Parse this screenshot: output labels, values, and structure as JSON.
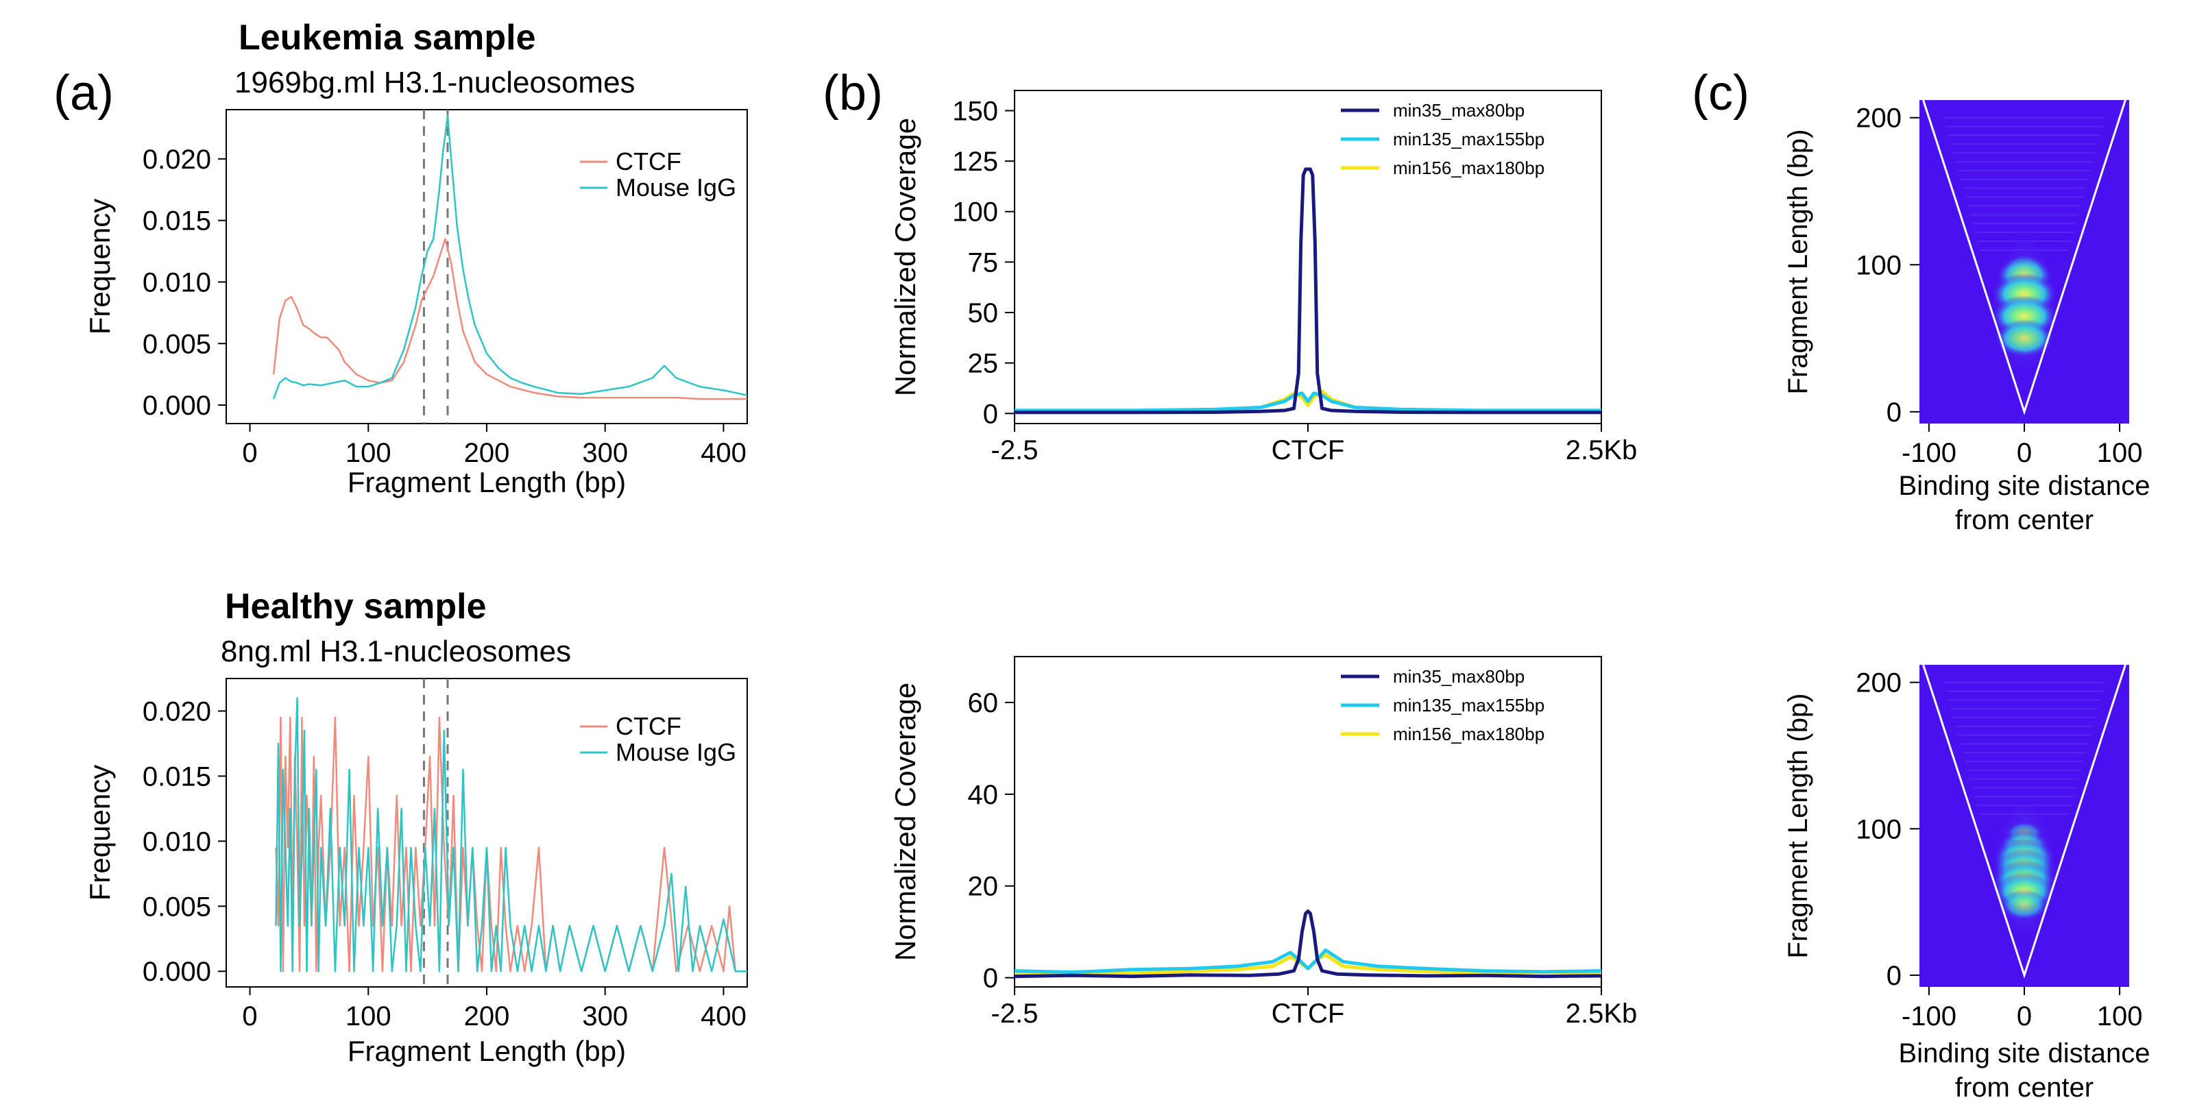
{
  "panels": {
    "a": "(a)",
    "b": "(b)",
    "c": "(c)"
  },
  "chart_data": [
    {
      "id": "a_top",
      "type": "line",
      "title": "Leukemia sample",
      "subtitle": "1969bg.ml H3.1-nucleosomes",
      "xlabel": "Fragment Length (bp)",
      "ylabel": "Frequency",
      "xlim": [
        -20,
        420
      ],
      "ylim": [
        -0.0015,
        0.024
      ],
      "xticks": [
        0,
        100,
        200,
        300,
        400
      ],
      "yticks": [
        "0.000",
        "0.005",
        "0.010",
        "0.015",
        "0.020"
      ],
      "ytick_values": [
        0,
        0.005,
        0.01,
        0.015,
        0.02
      ],
      "vlines": [
        147,
        167
      ],
      "legend": "top-right",
      "grid": false,
      "series": [
        {
          "name": "CTCF",
          "color": "#f08a7c",
          "x": [
            20,
            25,
            30,
            35,
            40,
            45,
            50,
            55,
            60,
            65,
            70,
            75,
            80,
            90,
            100,
            110,
            120,
            130,
            140,
            145,
            150,
            155,
            160,
            165,
            170,
            175,
            180,
            190,
            200,
            220,
            240,
            260,
            280,
            300,
            320,
            340,
            360,
            380,
            400,
            420
          ],
          "values": [
            0.0025,
            0.007,
            0.0085,
            0.0088,
            0.0078,
            0.0065,
            0.0062,
            0.0058,
            0.0055,
            0.0055,
            0.005,
            0.0045,
            0.0035,
            0.0025,
            0.002,
            0.0018,
            0.002,
            0.0035,
            0.0065,
            0.0085,
            0.0095,
            0.0105,
            0.012,
            0.0135,
            0.0115,
            0.0085,
            0.006,
            0.0035,
            0.0025,
            0.0015,
            0.001,
            0.0007,
            0.0006,
            0.0006,
            0.0006,
            0.0006,
            0.0006,
            0.0005,
            0.0005,
            0.0005
          ]
        },
        {
          "name": "Mouse IgG",
          "color": "#2ec4c6",
          "x": [
            20,
            25,
            30,
            35,
            40,
            45,
            50,
            60,
            70,
            80,
            90,
            100,
            110,
            120,
            130,
            140,
            145,
            150,
            155,
            160,
            163,
            167,
            170,
            175,
            180,
            185,
            190,
            200,
            210,
            220,
            230,
            240,
            260,
            280,
            300,
            320,
            340,
            350,
            360,
            380,
            400,
            420
          ],
          "values": [
            0.0005,
            0.0018,
            0.0022,
            0.0019,
            0.0018,
            0.0016,
            0.0017,
            0.0016,
            0.0018,
            0.002,
            0.0015,
            0.0015,
            0.0018,
            0.0022,
            0.0045,
            0.008,
            0.0105,
            0.0125,
            0.0135,
            0.0175,
            0.0205,
            0.0235,
            0.02,
            0.0145,
            0.011,
            0.0085,
            0.0065,
            0.0042,
            0.003,
            0.0022,
            0.0018,
            0.0015,
            0.001,
            0.0009,
            0.0012,
            0.0015,
            0.0022,
            0.0032,
            0.0022,
            0.0015,
            0.0012,
            0.0008
          ]
        }
      ]
    },
    {
      "id": "a_bottom",
      "type": "line",
      "title": "Healthy sample",
      "subtitle": "8ng.ml H3.1-nucleosomes",
      "xlabel": "Fragment Length (bp)",
      "ylabel": "Frequency",
      "xlim": [
        -20,
        420
      ],
      "ylim": [
        -0.0012,
        0.0225
      ],
      "xticks": [
        0,
        100,
        200,
        300,
        400
      ],
      "yticks": [
        "0.000",
        "0.005",
        "0.010",
        "0.015",
        "0.020"
      ],
      "ytick_values": [
        0,
        0.005,
        0.01,
        0.015,
        0.02
      ],
      "vlines": [
        147,
        167
      ],
      "legend": "top-right",
      "grid": false,
      "series": [
        {
          "name": "CTCF",
          "color": "#f08a7c",
          "x": [
            22,
            24,
            26,
            28,
            30,
            32,
            34,
            36,
            38,
            40,
            42,
            44,
            46,
            48,
            50,
            52,
            54,
            56,
            58,
            60,
            64,
            68,
            72,
            76,
            80,
            84,
            88,
            92,
            96,
            100,
            104,
            108,
            112,
            116,
            120,
            124,
            128,
            132,
            136,
            140,
            144,
            148,
            152,
            156,
            160,
            164,
            168,
            172,
            176,
            180,
            184,
            188,
            192,
            196,
            200,
            204,
            208,
            212,
            216,
            220,
            226,
            232,
            238,
            244,
            250,
            256,
            262,
            270,
            280,
            290,
            300,
            310,
            320,
            330,
            340,
            350,
            360,
            370,
            380,
            390,
            400,
            405,
            410
          ],
          "values": [
            0.0095,
            0.0035,
            0.0195,
            0.0,
            0.0165,
            0.0095,
            0.0195,
            0.0035,
            0.0165,
            0.0095,
            0.0,
            0.0195,
            0.0035,
            0.0135,
            0.0095,
            0.0035,
            0.0165,
            0.0,
            0.0095,
            0.0135,
            0.0035,
            0.0095,
            0.0195,
            0.0035,
            0.0095,
            0.0,
            0.0135,
            0.0035,
            0.0095,
            0.0165,
            0.0035,
            0.0095,
            0.0,
            0.0095,
            0.0035,
            0.0135,
            0.0035,
            0.0095,
            0.0,
            0.0095,
            0.0035,
            0.0095,
            0.0165,
            0.0035,
            0.0195,
            0.0095,
            0.0035,
            0.0135,
            0.0,
            0.0095,
            0.0035,
            0.0095,
            0.0035,
            0.0,
            0.0095,
            0.0035,
            0.0,
            0.0095,
            0.0035,
            0.0,
            0.0035,
            0.0,
            0.0035,
            0.0095,
            0.0,
            0.0035,
            0.0,
            0.0035,
            0.0,
            0.0035,
            0.0,
            0.0035,
            0.0,
            0.0035,
            0.0,
            0.0095,
            0.0,
            0.0035,
            0.0,
            0.0035,
            0.0,
            0.005,
            0.0
          ]
        },
        {
          "name": "Mouse IgG",
          "color": "#2ec4c6",
          "x": [
            22,
            24,
            26,
            28,
            30,
            32,
            34,
            36,
            38,
            40,
            42,
            44,
            46,
            48,
            50,
            52,
            54,
            56,
            58,
            60,
            64,
            68,
            72,
            76,
            80,
            84,
            88,
            92,
            96,
            100,
            104,
            108,
            112,
            116,
            120,
            124,
            128,
            132,
            136,
            140,
            144,
            148,
            152,
            156,
            160,
            164,
            168,
            172,
            176,
            180,
            184,
            188,
            192,
            196,
            200,
            204,
            208,
            212,
            216,
            220,
            226,
            232,
            238,
            244,
            250,
            256,
            262,
            270,
            280,
            290,
            300,
            310,
            320,
            330,
            340,
            350,
            356,
            362,
            368,
            374,
            380,
            390,
            400,
            410,
            420
          ],
          "values": [
            0.0035,
            0.0175,
            0.0,
            0.0155,
            0.0095,
            0.0035,
            0.0125,
            0.0,
            0.0155,
            0.021,
            0.0035,
            0.0095,
            0.0185,
            0.0,
            0.0125,
            0.0035,
            0.0095,
            0.0155,
            0.0,
            0.0095,
            0.0035,
            0.0125,
            0.0,
            0.0095,
            0.0035,
            0.0155,
            0.0,
            0.0095,
            0.0035,
            0.0095,
            0.0,
            0.0125,
            0.0035,
            0.0095,
            0.0,
            0.0035,
            0.0125,
            0.0,
            0.0095,
            0.0035,
            0.0,
            0.0095,
            0.0035,
            0.0125,
            0.0,
            0.0185,
            0.0035,
            0.0095,
            0.0,
            0.0155,
            0.0035,
            0.0095,
            0.0,
            0.0035,
            0.0095,
            0.0,
            0.0035,
            0.0,
            0.0095,
            0.0035,
            0.0,
            0.0035,
            0.0,
            0.0035,
            0.0,
            0.0035,
            0.0,
            0.0035,
            0.0,
            0.0035,
            0.0,
            0.0035,
            0.0,
            0.0035,
            0.0,
            0.0035,
            0.0075,
            0.0,
            0.0065,
            0.0,
            0.0035,
            0.0,
            0.004,
            0.0,
            0.0
          ]
        }
      ]
    },
    {
      "id": "b_top",
      "type": "line",
      "xlabel": "",
      "ylabel": "Normalized Coverage",
      "xlim": [
        -2.5,
        2.5
      ],
      "ylim": [
        -5,
        160
      ],
      "xticks": [
        -2.5,
        0,
        2.5
      ],
      "xticklabels": [
        "-2.5",
        "CTCF",
        "2.5Kb"
      ],
      "yticks": [
        0,
        25,
        50,
        75,
        100,
        125,
        150
      ],
      "legend": "top-right",
      "grid": false,
      "series": [
        {
          "name": "min35_max80bp",
          "color": "#1a1a7e",
          "x": [
            -2.5,
            -1.5,
            -0.8,
            -0.4,
            -0.2,
            -0.12,
            -0.08,
            -0.06,
            -0.04,
            -0.02,
            0,
            0.02,
            0.04,
            0.06,
            0.08,
            0.12,
            0.2,
            0.4,
            0.8,
            1.5,
            2.5
          ],
          "values": [
            0.5,
            0.5,
            0.6,
            1.0,
            1.5,
            2.5,
            20,
            85,
            118,
            121,
            121,
            121,
            118,
            85,
            20,
            2.5,
            1.5,
            1.0,
            0.6,
            0.5,
            0.5
          ]
        },
        {
          "name": "min135_max155bp",
          "color": "#22c8ee",
          "x": [
            -2.5,
            -1.5,
            -0.8,
            -0.4,
            -0.2,
            -0.12,
            -0.05,
            0,
            0.05,
            0.12,
            0.2,
            0.4,
            0.8,
            1.5,
            2.5
          ],
          "values": [
            1.5,
            1.5,
            2,
            3,
            6,
            9,
            10,
            6,
            10,
            9,
            6,
            3,
            2,
            1.5,
            1.5
          ]
        },
        {
          "name": "min156_max180bp",
          "color": "#f6e318",
          "x": [
            -2.5,
            -1.5,
            -0.8,
            -0.4,
            -0.2,
            -0.12,
            -0.05,
            0,
            0.05,
            0.12,
            0.2,
            0.4,
            0.8,
            1.5,
            2.5
          ],
          "values": [
            1.2,
            1.2,
            1.8,
            3,
            7,
            10,
            8,
            4,
            8,
            11,
            7,
            3,
            1.8,
            1.2,
            1.2
          ]
        }
      ]
    },
    {
      "id": "b_bottom",
      "type": "line",
      "xlabel": "",
      "ylabel": "Normalized Coverage",
      "xlim": [
        -2.5,
        2.5
      ],
      "ylim": [
        -2,
        70
      ],
      "xticks": [
        -2.5,
        0,
        2.5
      ],
      "xticklabels": [
        "-2.5",
        "CTCF",
        "2.5Kb"
      ],
      "yticks": [
        0,
        20,
        40,
        60
      ],
      "legend": "top-right",
      "grid": false,
      "series": [
        {
          "name": "min35_max80bp",
          "color": "#1a1a7e",
          "x": [
            -2.5,
            -2.0,
            -1.5,
            -1.0,
            -0.5,
            -0.25,
            -0.12,
            -0.08,
            -0.05,
            -0.02,
            0,
            0.02,
            0.05,
            0.08,
            0.12,
            0.25,
            0.5,
            1.0,
            1.5,
            2.0,
            2.5
          ],
          "values": [
            0.3,
            0.5,
            0.3,
            0.6,
            0.5,
            0.8,
            1.5,
            4,
            10,
            14,
            14.5,
            14,
            10,
            4,
            1.5,
            0.8,
            0.6,
            0.4,
            0.5,
            0.3,
            0.4
          ]
        },
        {
          "name": "min135_max155bp",
          "color": "#22c8ee",
          "x": [
            -2.5,
            -2.0,
            -1.5,
            -1.0,
            -0.6,
            -0.3,
            -0.15,
            -0.08,
            0,
            0.08,
            0.15,
            0.3,
            0.6,
            1.0,
            1.5,
            2.0,
            2.5
          ],
          "values": [
            1.5,
            1.2,
            1.8,
            2.0,
            2.5,
            3.5,
            5.5,
            4,
            2,
            4,
            6,
            3.5,
            2.5,
            2.0,
            1.5,
            1.3,
            1.5
          ]
        },
        {
          "name": "min156_max180bp",
          "color": "#f6e318",
          "x": [
            -2.5,
            -2.0,
            -1.5,
            -1.0,
            -0.6,
            -0.3,
            -0.15,
            -0.08,
            0,
            0.08,
            0.15,
            0.3,
            0.6,
            1.0,
            1.5,
            2.0,
            2.5
          ],
          "values": [
            1.0,
            1.3,
            1.0,
            1.4,
            1.8,
            2.5,
            4.5,
            3.5,
            2.0,
            4.0,
            5.0,
            2.5,
            1.8,
            1.4,
            1.0,
            1.2,
            1.0
          ]
        }
      ]
    },
    {
      "id": "c_top",
      "type": "heatmap",
      "xlabel_lines": [
        "Binding site distance",
        "from center"
      ],
      "ylabel": "Fragment Length (bp)",
      "xlim": [
        -110,
        110
      ],
      "ylim": [
        -8,
        212
      ],
      "xticks": [
        -100,
        0,
        100
      ],
      "yticks": [
        0,
        100,
        200
      ],
      "background": "#4b10f0",
      "v_outline_top_halfwidth": 106,
      "hotspots": [
        {
          "x": 0,
          "y": 98,
          "level": 0.35
        },
        {
          "x": 0,
          "y": 93,
          "level": 0.75
        },
        {
          "x": 0,
          "y": 80,
          "level": 1.0
        },
        {
          "x": 0,
          "y": 65,
          "level": 1.0
        },
        {
          "x": 0,
          "y": 50,
          "level": 0.85
        }
      ]
    },
    {
      "id": "c_bottom",
      "type": "heatmap",
      "xlabel_lines": [
        "Binding site distance",
        "from center"
      ],
      "ylabel": "Fragment Length (bp)",
      "xlim": [
        -110,
        110
      ],
      "ylim": [
        -8,
        212
      ],
      "xticks": [
        -100,
        0,
        100
      ],
      "yticks": [
        0,
        100,
        200
      ],
      "background": "#4b10f0",
      "v_outline_top_halfwidth": 106,
      "hotspots": [
        {
          "x": 0,
          "y": 97,
          "level": 0.25
        },
        {
          "x": 0,
          "y": 88,
          "level": 0.6
        },
        {
          "x": 0,
          "y": 80,
          "level": 0.9
        },
        {
          "x": 0,
          "y": 73,
          "level": 0.9
        },
        {
          "x": 0,
          "y": 65,
          "level": 0.95
        },
        {
          "x": 0,
          "y": 57,
          "level": 0.9
        },
        {
          "x": 0,
          "y": 48,
          "level": 0.55
        }
      ]
    }
  ]
}
